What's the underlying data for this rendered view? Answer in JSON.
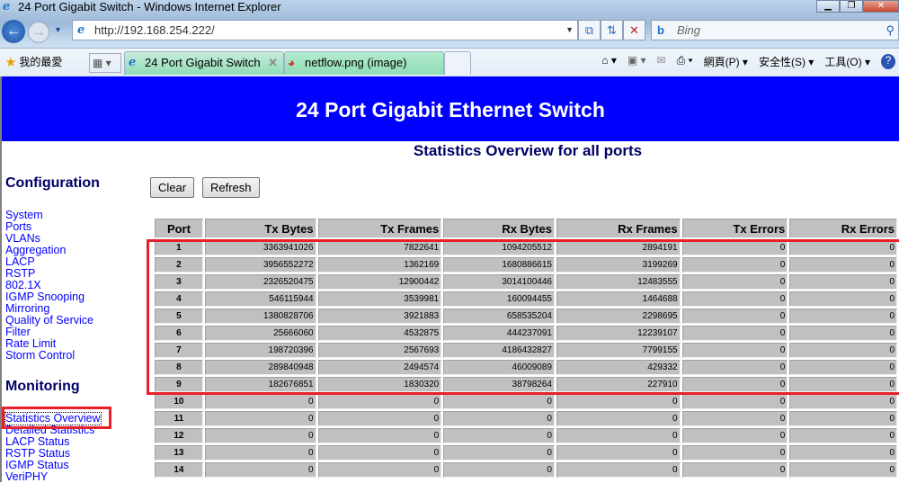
{
  "browser": {
    "window_title": "24 Port Gigabit Switch - Windows Internet Explorer",
    "url": "http://192.168.254.222/",
    "search_placeholder": "Bing",
    "favorites_label": "我的最愛",
    "tabs": [
      {
        "label": "24 Port Gigabit Switch",
        "active": true
      },
      {
        "label": "netflow.png (image)",
        "active": false
      }
    ],
    "toolbar": {
      "page": "網頁(P)",
      "safety": "安全性(S)",
      "tools": "工具(O)"
    }
  },
  "header": {
    "title": "24 Port Gigabit Ethernet Switch",
    "color": "#0000ff"
  },
  "main": {
    "title": "Statistics Overview for all ports",
    "clear_label": "Clear",
    "refresh_label": "Refresh"
  },
  "sidebar": {
    "config_heading": "Configuration",
    "config_items": [
      "System",
      "Ports",
      "VLANs",
      "Aggregation",
      "LACP",
      "RSTP",
      "802.1X",
      "IGMP Snooping",
      "Mirroring",
      "Quality of Service",
      "Filter",
      "Rate Limit",
      "Storm Control"
    ],
    "monitoring_heading": "Monitoring",
    "monitoring_items": [
      "Statistics Overview",
      "Detailed Statistics",
      "LACP Status",
      "RSTP Status",
      "IGMP Status",
      "VeriPHY"
    ]
  },
  "table": {
    "columns": [
      "Port",
      "Tx Bytes",
      "Tx Frames",
      "Rx Bytes",
      "Rx Frames",
      "Tx Errors",
      "Rx Errors"
    ],
    "rows": [
      [
        "1",
        "3363941026",
        "7822641",
        "1094205512",
        "2894191",
        "0",
        "0"
      ],
      [
        "2",
        "3956552272",
        "1362169",
        "1680886615",
        "3199269",
        "0",
        "0"
      ],
      [
        "3",
        "2326520475",
        "12900442",
        "3014100446",
        "12483555",
        "0",
        "0"
      ],
      [
        "4",
        "546115944",
        "3539981",
        "160094455",
        "1464688",
        "0",
        "0"
      ],
      [
        "5",
        "1380828706",
        "3921883",
        "658535204",
        "2298695",
        "0",
        "0"
      ],
      [
        "6",
        "25666060",
        "4532875",
        "444237091",
        "12239107",
        "0",
        "0"
      ],
      [
        "7",
        "198720396",
        "2567693",
        "4186432827",
        "7799155",
        "0",
        "0"
      ],
      [
        "8",
        "289840948",
        "2494574",
        "46009089",
        "429332",
        "0",
        "0"
      ],
      [
        "9",
        "182676851",
        "1830320",
        "38798264",
        "227910",
        "0",
        "0"
      ],
      [
        "10",
        "0",
        "0",
        "0",
        "0",
        "0",
        "0"
      ],
      [
        "11",
        "0",
        "0",
        "0",
        "0",
        "0",
        "0"
      ],
      [
        "12",
        "0",
        "0",
        "0",
        "0",
        "0",
        "0"
      ],
      [
        "13",
        "0",
        "0",
        "0",
        "0",
        "0",
        "0"
      ],
      [
        "14",
        "0",
        "0",
        "0",
        "0",
        "0",
        "0"
      ]
    ]
  },
  "highlight_color": "#e8202a"
}
